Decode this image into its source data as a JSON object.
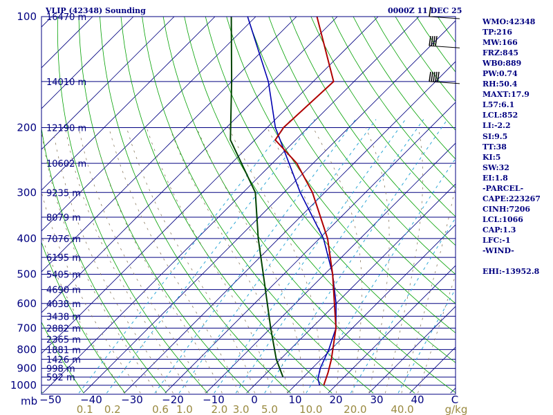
{
  "header": {
    "left_title": "VLIP (42348) Sounding",
    "right_title": "0000Z 11 DEC 25"
  },
  "sidebar": {
    "items": [
      "WMO:42348",
      "TP:216",
      "MW:166",
      "FRZ:845",
      "WB0:889",
      "PW:0.74",
      "RH:50.4",
      "MAXT:17.9",
      "L57:6.1",
      "LCL:852",
      "LI:-2.2",
      "SI:9.5",
      "TT:38",
      "KI:5",
      "SW:32",
      "EI:1.8",
      "-PARCEL-",
      "CAPE:223267",
      "CINH:7206",
      "LCL:1066",
      "CAP:1.3",
      "LFC:-1",
      "-WIND-",
      "",
      "EHI:-13952.8"
    ]
  },
  "colors": {
    "isobar": "#000080",
    "isotherm": "#000080",
    "dry_adiabat": "#00a000",
    "moist_adiabat": "#8b7b60",
    "mixing_ratio": "#2aa6d6",
    "temperature": "#b00000",
    "dewpoint": "#004400",
    "parcel": "#0000b0",
    "label": "#000080",
    "mixing_label": "#9a8a40",
    "wind_barb": "#000000"
  },
  "chart_data": {
    "type": "skew-t",
    "pressure_unit_label": "mb",
    "x_unit_label": "C",
    "mixing_unit_label": "g/kg",
    "pressure_levels": [
      100,
      200,
      300,
      400,
      500,
      600,
      700,
      800,
      900,
      1000
    ],
    "temperature_ticks": [
      -50,
      -40,
      -30,
      -20,
      -10,
      0,
      10,
      20,
      30,
      40
    ],
    "mixing_ratio_ticks": [
      "0.1",
      "0.2",
      "0.6",
      "1.0",
      "2.0",
      "3.0",
      "5.0",
      "10.0",
      "20.0",
      "40.0"
    ],
    "height_labels": [
      {
        "p": 100,
        "label": "16470 m"
      },
      {
        "p": 150,
        "label": "14010 m"
      },
      {
        "p": 200,
        "label": "12190 m"
      },
      {
        "p": 250,
        "label": "10602 m"
      },
      {
        "p": 300,
        "label": "9235 m"
      },
      {
        "p": 350,
        "label": "8079 m"
      },
      {
        "p": 400,
        "label": "7076 m"
      },
      {
        "p": 450,
        "label": "6195 m"
      },
      {
        "p": 500,
        "label": "5405 m"
      },
      {
        "p": 550,
        "label": "4690 m"
      },
      {
        "p": 600,
        "label": "4038 m"
      },
      {
        "p": 650,
        "label": "3438 m"
      },
      {
        "p": 700,
        "label": "2882 m"
      },
      {
        "p": 750,
        "label": "2365 m"
      },
      {
        "p": 800,
        "label": "1881 m"
      },
      {
        "p": 850,
        "label": "1426 m"
      },
      {
        "p": 900,
        "label": "998 m"
      },
      {
        "p": 950,
        "label": "592 m"
      }
    ],
    "temperature_profile": [
      {
        "p": 1000,
        "t": 17.0
      },
      {
        "p": 925,
        "t": 15.0
      },
      {
        "p": 850,
        "t": 12.5
      },
      {
        "p": 700,
        "t": 6.0
      },
      {
        "p": 500,
        "t": -8.0
      },
      {
        "p": 400,
        "t": -18.0
      },
      {
        "p": 300,
        "t": -33.0
      },
      {
        "p": 250,
        "t": -44.0
      },
      {
        "p": 216,
        "t": -55.0
      },
      {
        "p": 200,
        "t": -56.0
      },
      {
        "p": 150,
        "t": -55.0
      },
      {
        "p": 100,
        "t": -75.0
      }
    ],
    "dewpoint_profile": [
      {
        "p": 950,
        "td": 5.0
      },
      {
        "p": 850,
        "td": -1.0
      },
      {
        "p": 700,
        "td": -10.0
      },
      {
        "p": 500,
        "td": -25.0
      },
      {
        "p": 400,
        "td": -35.0
      },
      {
        "p": 300,
        "td": -47.0
      },
      {
        "p": 216,
        "td": -66.0
      },
      {
        "p": 150,
        "td": -80.0
      },
      {
        "p": 100,
        "td": -96.0
      }
    ],
    "parcel_profile": [
      {
        "p": 1000,
        "t": 16.0
      },
      {
        "p": 960,
        "t": 14.0
      },
      {
        "p": 900,
        "t": 12.0
      },
      {
        "p": 800,
        "t": 9.5
      },
      {
        "p": 700,
        "t": 6.0
      },
      {
        "p": 600,
        "t": 0.0
      },
      {
        "p": 500,
        "t": -8.0
      },
      {
        "p": 400,
        "t": -19.0
      },
      {
        "p": 300,
        "t": -36.0
      },
      {
        "p": 200,
        "t": -58.0
      },
      {
        "p": 150,
        "t": -71.0
      },
      {
        "p": 100,
        "t": -92.0
      }
    ],
    "wind_barbs": [
      {
        "p": 100
      },
      {
        "p": 120
      },
      {
        "p": 150
      }
    ]
  }
}
